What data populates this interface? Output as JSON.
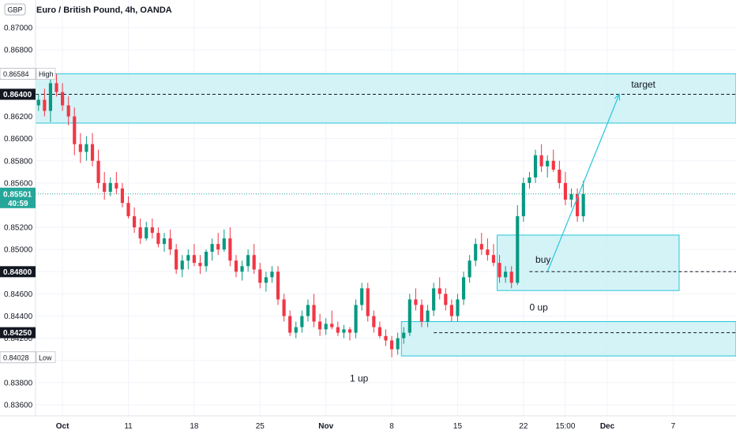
{
  "header": {
    "currency_badge": "GBP",
    "title": "Euro / British Pound, 4h, OANDA"
  },
  "colors": {
    "up": "#089981",
    "down": "#f23645",
    "zone_fill": "#cdf1f6",
    "zone_stroke": "#26c6da",
    "last_price_bg": "#26a69a",
    "label_dark_bg": "#131722",
    "grid": "#f0f3fa"
  },
  "chart_data": {
    "type": "candlestick",
    "title": "Euro / British Pound, 4h, OANDA",
    "xlabel": "",
    "ylabel": "",
    "ylim": [
      0.835,
      0.8725
    ],
    "y_ticks": [
      "0.87000",
      "0.86800",
      "0.86600",
      "0.86400",
      "0.86200",
      "0.86000",
      "0.85800",
      "0.85600",
      "0.85400",
      "0.85200",
      "0.85000",
      "0.84800",
      "0.84600",
      "0.84400",
      "0.84200",
      "0.84000",
      "0.83800",
      "0.83600"
    ],
    "x_ticks": [
      "Oct",
      "11",
      "18",
      "25",
      "Nov",
      "8",
      "15",
      "22",
      "15:00",
      "Dec",
      "7"
    ],
    "price_labels": [
      {
        "text": "0.86584",
        "value": 0.86584,
        "style": "light",
        "tag": "High"
      },
      {
        "text": "0.86400",
        "value": 0.864,
        "style": "dark"
      },
      {
        "text": "0.84800",
        "value": 0.848,
        "style": "dark"
      },
      {
        "text": "0.84250",
        "value": 0.8425,
        "style": "dark"
      },
      {
        "text": "0.84028",
        "value": 0.84028,
        "style": "light",
        "tag": "Low"
      }
    ],
    "last_price": {
      "value": 0.85501,
      "text": "0.85501",
      "countdown": "40:59"
    },
    "zones": [
      {
        "name": "resistance",
        "top": 0.86584,
        "bottom": 0.8614,
        "start": 0,
        "end": 116
      },
      {
        "name": "buy-zone",
        "top": 0.8513,
        "bottom": 0.8463,
        "start": 77,
        "end": 107
      },
      {
        "name": "support",
        "top": 0.8435,
        "bottom": 0.8404,
        "start": 61,
        "end": 116
      }
    ],
    "levels": [
      {
        "value": 0.864,
        "start": 0,
        "end": 116
      },
      {
        "value": 0.848,
        "start": 82,
        "end": 116
      },
      {
        "value": 0.8425,
        "start": 66,
        "end": 116
      }
    ],
    "arrow": {
      "from": [
        85,
        0.848
      ],
      "to": [
        97,
        0.864
      ]
    },
    "annotations": [
      {
        "text": "target",
        "x": 99,
        "y": 0.8646
      },
      {
        "text": "buy",
        "x": 83,
        "y": 0.8488
      },
      {
        "text": "0 up",
        "x": 82,
        "y": 0.8445
      },
      {
        "text": "1 up",
        "x": 52,
        "y": 0.8381
      }
    ],
    "candles": [
      [
        0.863,
        0.864,
        0.8625,
        0.8635
      ],
      [
        0.8635,
        0.8645,
        0.862,
        0.8625
      ],
      [
        0.8625,
        0.8654,
        0.8615,
        0.865
      ],
      [
        0.865,
        0.86584,
        0.8638,
        0.8642
      ],
      [
        0.8642,
        0.865,
        0.8625,
        0.863
      ],
      [
        0.863,
        0.8638,
        0.8612,
        0.862
      ],
      [
        0.862,
        0.8628,
        0.8585,
        0.8595
      ],
      [
        0.8595,
        0.8605,
        0.8578,
        0.8588
      ],
      [
        0.8588,
        0.8602,
        0.858,
        0.8595
      ],
      [
        0.8595,
        0.8605,
        0.8575,
        0.858
      ],
      [
        0.858,
        0.859,
        0.8555,
        0.856
      ],
      [
        0.856,
        0.857,
        0.8545,
        0.8552
      ],
      [
        0.8552,
        0.8565,
        0.8548,
        0.856
      ],
      [
        0.856,
        0.857,
        0.855,
        0.8555
      ],
      [
        0.8555,
        0.856,
        0.8538,
        0.8542
      ],
      [
        0.8542,
        0.8548,
        0.8528,
        0.853
      ],
      [
        0.853,
        0.8538,
        0.8515,
        0.852
      ],
      [
        0.852,
        0.8528,
        0.8505,
        0.851
      ],
      [
        0.851,
        0.8525,
        0.8508,
        0.852
      ],
      [
        0.852,
        0.8528,
        0.851,
        0.8515
      ],
      [
        0.8515,
        0.852,
        0.8502,
        0.8505
      ],
      [
        0.8505,
        0.8515,
        0.8498,
        0.851
      ],
      [
        0.851,
        0.8518,
        0.8495,
        0.85
      ],
      [
        0.85,
        0.8505,
        0.8478,
        0.8482
      ],
      [
        0.8482,
        0.8495,
        0.8475,
        0.849
      ],
      [
        0.849,
        0.85,
        0.8482,
        0.8495
      ],
      [
        0.8495,
        0.8505,
        0.8485,
        0.8488
      ],
      [
        0.8488,
        0.8495,
        0.8478,
        0.8485
      ],
      [
        0.8485,
        0.85,
        0.848,
        0.8498
      ],
      [
        0.8498,
        0.851,
        0.849,
        0.8505
      ],
      [
        0.8505,
        0.8515,
        0.8495,
        0.85
      ],
      [
        0.85,
        0.8518,
        0.8498,
        0.851
      ],
      [
        0.851,
        0.852,
        0.8485,
        0.849
      ],
      [
        0.849,
        0.8495,
        0.8475,
        0.848
      ],
      [
        0.848,
        0.849,
        0.8472,
        0.8485
      ],
      [
        0.8485,
        0.85,
        0.848,
        0.8495
      ],
      [
        0.8495,
        0.8505,
        0.8478,
        0.8482
      ],
      [
        0.8482,
        0.8488,
        0.8465,
        0.847
      ],
      [
        0.847,
        0.848,
        0.8462,
        0.8475
      ],
      [
        0.8475,
        0.8485,
        0.847,
        0.848
      ],
      [
        0.848,
        0.8485,
        0.845,
        0.8455
      ],
      [
        0.8455,
        0.846,
        0.8435,
        0.844
      ],
      [
        0.844,
        0.8445,
        0.8422,
        0.8425
      ],
      [
        0.8425,
        0.8435,
        0.842,
        0.843
      ],
      [
        0.843,
        0.8445,
        0.8425,
        0.844
      ],
      [
        0.844,
        0.8455,
        0.8435,
        0.845
      ],
      [
        0.845,
        0.846,
        0.843,
        0.8435
      ],
      [
        0.8435,
        0.8442,
        0.8422,
        0.8428
      ],
      [
        0.8428,
        0.8438,
        0.8423,
        0.8433
      ],
      [
        0.8433,
        0.8445,
        0.8428,
        0.843
      ],
      [
        0.843,
        0.8435,
        0.8422,
        0.8425
      ],
      [
        0.8425,
        0.8432,
        0.842,
        0.8428
      ],
      [
        0.8428,
        0.843,
        0.8418,
        0.8425
      ],
      [
        0.8425,
        0.8455,
        0.842,
        0.845
      ],
      [
        0.845,
        0.847,
        0.8445,
        0.8465
      ],
      [
        0.8465,
        0.847,
        0.8435,
        0.844
      ],
      [
        0.844,
        0.8445,
        0.8425,
        0.843
      ],
      [
        0.843,
        0.8435,
        0.842,
        0.8422
      ],
      [
        0.8422,
        0.8428,
        0.8413,
        0.8418
      ],
      [
        0.8418,
        0.8422,
        0.84028,
        0.841
      ],
      [
        0.841,
        0.8425,
        0.8405,
        0.842
      ],
      [
        0.842,
        0.843,
        0.8415,
        0.8425
      ],
      [
        0.8425,
        0.846,
        0.8422,
        0.8455
      ],
      [
        0.8455,
        0.8465,
        0.8445,
        0.845
      ],
      [
        0.845,
        0.8455,
        0.843,
        0.8435
      ],
      [
        0.8435,
        0.845,
        0.843,
        0.8445
      ],
      [
        0.8445,
        0.847,
        0.844,
        0.8465
      ],
      [
        0.8465,
        0.8475,
        0.8455,
        0.846
      ],
      [
        0.846,
        0.8465,
        0.8445,
        0.845
      ],
      [
        0.845,
        0.8455,
        0.8435,
        0.844
      ],
      [
        0.844,
        0.846,
        0.8435,
        0.8455
      ],
      [
        0.8455,
        0.848,
        0.845,
        0.8475
      ],
      [
        0.8475,
        0.8495,
        0.847,
        0.849
      ],
      [
        0.849,
        0.851,
        0.8485,
        0.8505
      ],
      [
        0.8505,
        0.8515,
        0.8495,
        0.85
      ],
      [
        0.85,
        0.851,
        0.849,
        0.8495
      ],
      [
        0.8495,
        0.8505,
        0.8485,
        0.8488
      ],
      [
        0.8488,
        0.8495,
        0.847,
        0.8475
      ],
      [
        0.8475,
        0.8485,
        0.847,
        0.848
      ],
      [
        0.848,
        0.8485,
        0.8465,
        0.847
      ],
      [
        0.847,
        0.854,
        0.8468,
        0.853
      ],
      [
        0.853,
        0.8565,
        0.8525,
        0.856
      ],
      [
        0.856,
        0.857,
        0.8555,
        0.8565
      ],
      [
        0.8565,
        0.859,
        0.856,
        0.8585
      ],
      [
        0.8585,
        0.8595,
        0.857,
        0.8575
      ],
      [
        0.8575,
        0.8585,
        0.8565,
        0.858
      ],
      [
        0.858,
        0.859,
        0.857,
        0.8572
      ],
      [
        0.8572,
        0.858,
        0.8555,
        0.856
      ],
      [
        0.856,
        0.857,
        0.854,
        0.8545
      ],
      [
        0.8545,
        0.8555,
        0.8538,
        0.855
      ],
      [
        0.855,
        0.8555,
        0.8525,
        0.853
      ],
      [
        0.853,
        0.8562,
        0.8525,
        0.85501
      ]
    ]
  }
}
